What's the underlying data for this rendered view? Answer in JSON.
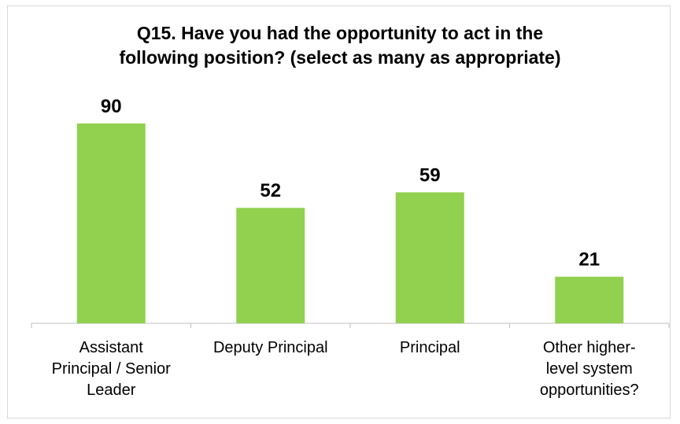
{
  "chart_data": {
    "type": "bar",
    "title": "Q15. Have you had the opportunity to act in the\nfollowing position? (select as many as appropriate)",
    "categories": [
      "Assistant\nPrincipal / Senior\nLeader",
      "Deputy Principal",
      "Principal",
      "Other higher-\nlevel system\nopportunities?"
    ],
    "values": [
      90,
      52,
      59,
      21
    ],
    "data_labels": [
      "90",
      "52",
      "59",
      "21"
    ],
    "ylim": [
      0,
      100
    ],
    "grid": false,
    "legend": "none",
    "bar_color": "#92d050",
    "axis_color": "#bfbfbf"
  }
}
